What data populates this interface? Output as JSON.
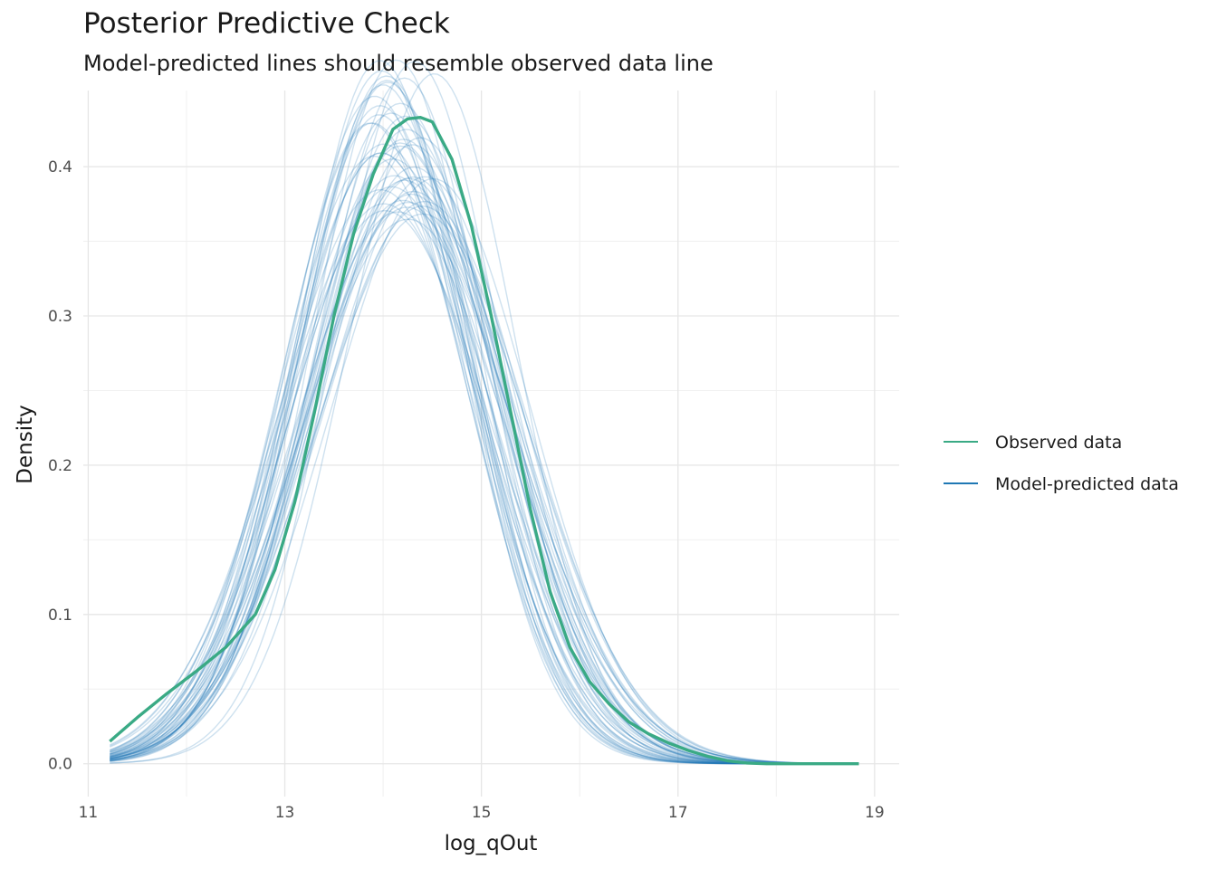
{
  "chart_data": {
    "type": "line",
    "title": "Posterior Predictive Check",
    "subtitle": "Model-predicted lines should resemble observed data line",
    "xlabel": "log_qOut",
    "ylabel": "Density",
    "xlim": [
      10.95,
      19.25
    ],
    "ylim": [
      -0.022,
      0.451
    ],
    "x_ticks": [
      11,
      13,
      15,
      17,
      19
    ],
    "x_tick_labels": [
      "11",
      "13",
      "15",
      "17",
      "19"
    ],
    "y_ticks": [
      0.0,
      0.1,
      0.2,
      0.3,
      0.4
    ],
    "y_tick_labels": [
      "0.0",
      "0.1",
      "0.2",
      "0.3",
      "0.4"
    ],
    "grid": true,
    "legend_position": "right",
    "series": [
      {
        "name": "Observed data",
        "color": "#3aaa85",
        "x": [
          11.22,
          11.5,
          11.8,
          12.1,
          12.4,
          12.7,
          12.9,
          13.1,
          13.3,
          13.5,
          13.7,
          13.9,
          14.1,
          14.25,
          14.38,
          14.5,
          14.7,
          14.9,
          15.1,
          15.3,
          15.5,
          15.7,
          15.9,
          16.1,
          16.3,
          16.5,
          16.7,
          16.9,
          17.1,
          17.3,
          17.5,
          17.7,
          17.9,
          18.1,
          18.3,
          18.5,
          18.84
        ],
        "y": [
          0.015,
          0.031,
          0.047,
          0.062,
          0.078,
          0.1,
          0.13,
          0.175,
          0.235,
          0.3,
          0.355,
          0.395,
          0.425,
          0.432,
          0.433,
          0.43,
          0.405,
          0.36,
          0.3,
          0.235,
          0.17,
          0.115,
          0.078,
          0.055,
          0.04,
          0.028,
          0.02,
          0.014,
          0.009,
          0.005,
          0.002,
          0.0005,
          0.0,
          0.0,
          0.0,
          0.0,
          0.0
        ]
      },
      {
        "name": "Model-predicted data",
        "color": "#1f78b4",
        "draws": 50,
        "mean_mu": 14.15,
        "mean_sigma": 0.97,
        "x_range": [
          11.22,
          18.84
        ]
      }
    ]
  }
}
